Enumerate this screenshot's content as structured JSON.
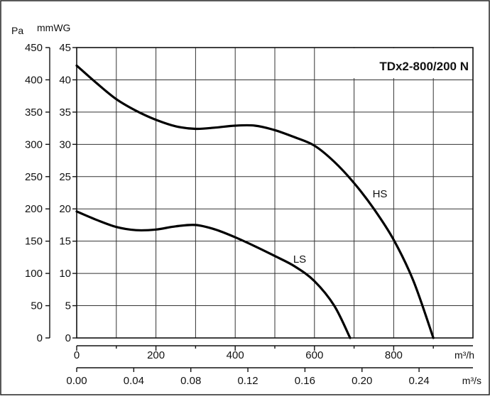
{
  "chart_data": {
    "type": "line",
    "title": "TDx2-800/200 N",
    "x_primary": {
      "unit": "m³/h",
      "ticks": [
        0,
        200,
        400,
        600,
        800
      ],
      "lim": [
        0,
        1000
      ]
    },
    "x_secondary": {
      "unit": "m³/s",
      "ticks": [
        "0.00",
        "0.04",
        "0.08",
        "0.12",
        "0.16",
        "0.20",
        "0.24"
      ]
    },
    "y_primary": {
      "unit": "Pa",
      "ticks": [
        0,
        50,
        100,
        150,
        200,
        250,
        300,
        350,
        400,
        450
      ],
      "lim": [
        0,
        450
      ]
    },
    "y_secondary": {
      "unit": "mmWG",
      "ticks": [
        0,
        5,
        10,
        15,
        20,
        25,
        30,
        35,
        40,
        45
      ]
    },
    "grid": true,
    "series": [
      {
        "name": "HS",
        "x": [
          0,
          50,
          100,
          150,
          200,
          250,
          300,
          350,
          400,
          450,
          500,
          550,
          600,
          650,
          700,
          750,
          800,
          850,
          900
        ],
        "y": [
          422,
          395,
          370,
          352,
          338,
          328,
          324,
          326,
          329,
          329,
          322,
          311,
          298,
          273,
          240,
          200,
          152,
          88,
          0
        ]
      },
      {
        "name": "LS",
        "x": [
          0,
          50,
          100,
          150,
          200,
          250,
          300,
          350,
          400,
          450,
          500,
          550,
          600,
          650,
          690
        ],
        "y": [
          196,
          183,
          172,
          167,
          168,
          173,
          175,
          168,
          156,
          142,
          127,
          111,
          88,
          50,
          0
        ]
      }
    ]
  }
}
